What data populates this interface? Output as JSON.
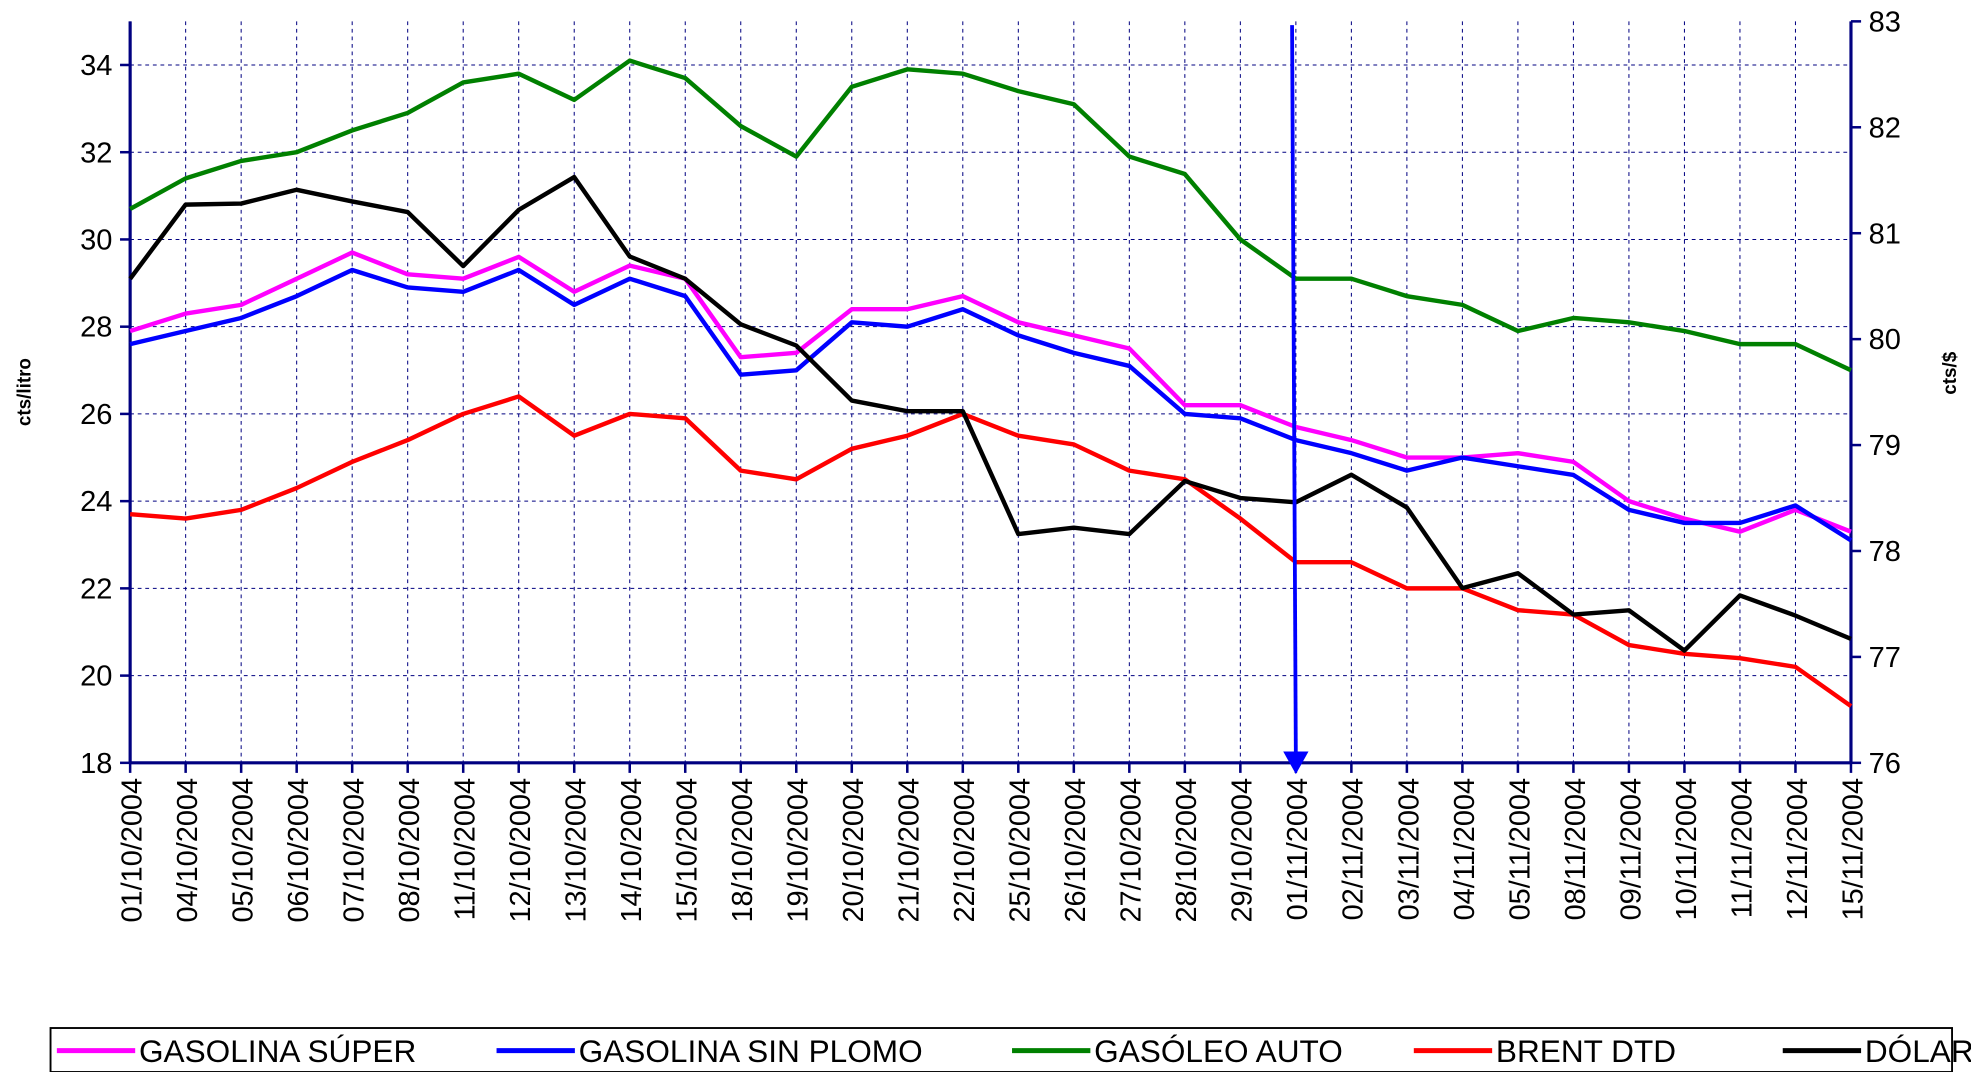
{
  "chart_data": {
    "type": "line",
    "y_label": "cts/litro",
    "y2_label": "cts/$",
    "categories": [
      "01/10/2004",
      "04/10/2004",
      "05/10/2004",
      "06/10/2004",
      "07/10/2004",
      "08/10/2004",
      "11/10/2004",
      "12/10/2004",
      "13/10/2004",
      "14/10/2004",
      "15/10/2004",
      "18/10/2004",
      "19/10/2004",
      "20/10/2004",
      "21/10/2004",
      "22/10/2004",
      "25/10/2004",
      "26/10/2004",
      "27/10/2004",
      "28/10/2004",
      "29/10/2004",
      "01/11/2004",
      "02/11/2004",
      "03/11/2004",
      "04/11/2004",
      "05/11/2004",
      "08/11/2004",
      "09/11/2004",
      "10/11/2004",
      "11/11/2004",
      "12/11/2004",
      "15/11/2004"
    ],
    "series": [
      {
        "name": "GASOLINA SÚPER",
        "color": "#ff00ff",
        "values": [
          27.9,
          28.3,
          28.5,
          29.1,
          29.7,
          29.2,
          29.1,
          29.6,
          28.8,
          29.4,
          29.1,
          27.3,
          27.4,
          28.4,
          28.4,
          28.7,
          28.1,
          27.8,
          27.5,
          26.2,
          26.2,
          25.7,
          25.4,
          25.0,
          25.0,
          25.1,
          24.9,
          24.0,
          23.6,
          23.3,
          23.8,
          23.3
        ]
      },
      {
        "name": "GASOLINA SIN PLOMO",
        "color": "#0000ff",
        "values": [
          27.6,
          27.9,
          28.2,
          28.7,
          29.3,
          28.9,
          28.8,
          29.3,
          28.5,
          29.1,
          28.7,
          26.9,
          27.0,
          28.1,
          28.0,
          28.4,
          27.8,
          27.4,
          27.1,
          26.0,
          25.9,
          25.4,
          25.1,
          24.7,
          25.0,
          24.8,
          24.6,
          23.8,
          23.5,
          23.5,
          23.9,
          23.1
        ]
      },
      {
        "name": "GASÓLEO AUTO",
        "color": "#008000",
        "values": [
          30.7,
          31.4,
          31.8,
          32.0,
          32.5,
          32.9,
          33.6,
          33.8,
          33.2,
          34.1,
          33.7,
          32.6,
          31.9,
          33.5,
          33.9,
          33.8,
          33.4,
          33.1,
          31.9,
          31.5,
          30.0,
          29.1,
          29.1,
          28.7,
          28.5,
          27.9,
          28.2,
          28.1,
          27.9,
          27.6,
          27.6,
          27.0
        ]
      },
      {
        "name": "BRENT DTD",
        "color": "#ff0000",
        "values": [
          23.7,
          23.6,
          23.8,
          24.3,
          24.9,
          25.4,
          26.0,
          26.4,
          25.5,
          26.0,
          25.9,
          24.7,
          24.5,
          25.2,
          25.5,
          26.0,
          25.5,
          25.3,
          24.7,
          24.5,
          23.6,
          22.6,
          22.6,
          22.0,
          22.0,
          21.5,
          21.4,
          20.7,
          20.5,
          20.4,
          20.2,
          19.3
        ]
      },
      {
        "name": "DÓLAR",
        "color": "#000000",
        "axis": "y2",
        "values": [
          80.57,
          81.27,
          81.28,
          81.41,
          81.3,
          81.2,
          80.69,
          81.22,
          81.53,
          80.78,
          80.57,
          80.14,
          79.94,
          79.42,
          79.32,
          79.32,
          78.16,
          78.22,
          78.16,
          78.66,
          78.5,
          78.46,
          78.72,
          78.41,
          77.65,
          77.79,
          77.4,
          77.44,
          77.06,
          77.58,
          77.39,
          77.17
        ]
      }
    ],
    "ylim": [
      18,
      35
    ],
    "yticks": [
      18,
      20,
      22,
      24,
      26,
      28,
      30,
      32,
      34
    ],
    "y2lim": [
      76,
      83
    ],
    "y2ticks": [
      76,
      77,
      78,
      79,
      80,
      81,
      82,
      83
    ],
    "grid": true,
    "legend": "bottom"
  }
}
